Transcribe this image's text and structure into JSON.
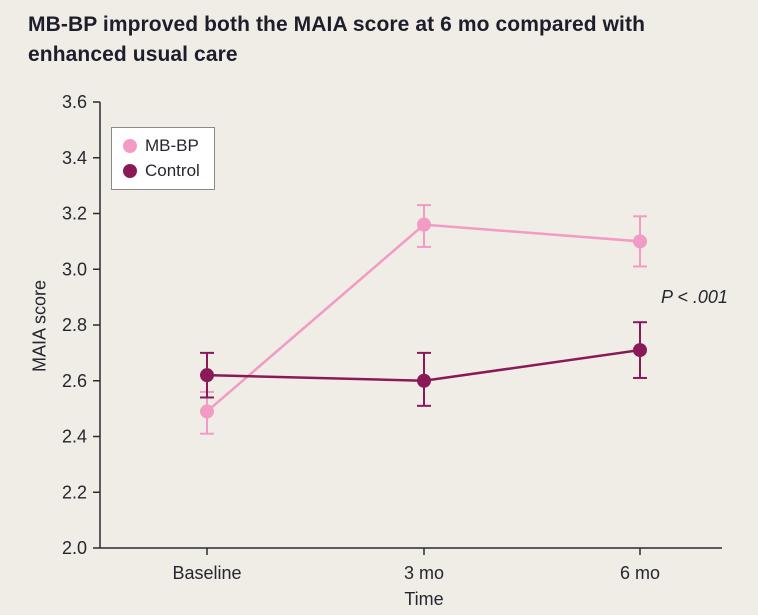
{
  "title": {
    "lines": [
      "MB-BP improved both the MAIA score at 6 mo compared with",
      "enhanced usual care"
    ]
  },
  "colors": {
    "background": "#f0ede7",
    "axis": "#2b2b30",
    "text": "#26262e",
    "mbbp_pink": "#f29cc4",
    "control_magenta": "#8a1a57"
  },
  "chart_data": {
    "type": "line",
    "title": "MB-BP improved both the MAIA score at 6 mo compared with enhanced usual care",
    "categories": [
      "Baseline",
      "3 mo",
      "6 mo"
    ],
    "series": [
      {
        "name": "MB-BP",
        "color": "#f29cc4",
        "values": [
          2.49,
          3.16,
          3.1
        ],
        "err_low": [
          2.41,
          3.08,
          3.01
        ],
        "err_high": [
          2.56,
          3.23,
          3.19
        ]
      },
      {
        "name": "Control",
        "color": "#8a1a57",
        "values": [
          2.62,
          2.6,
          2.71
        ],
        "err_low": [
          2.54,
          2.51,
          2.61
        ],
        "err_high": [
          2.7,
          2.7,
          2.81
        ]
      }
    ],
    "xlabel": "Time",
    "ylabel": "MAIA score",
    "ylim": [
      2.0,
      3.6
    ],
    "yticks": [
      2.0,
      2.2,
      2.4,
      2.6,
      2.8,
      3.0,
      3.2,
      3.4,
      3.6
    ],
    "grid": false,
    "legend_position": "top-left",
    "annotation": "P < .001"
  }
}
